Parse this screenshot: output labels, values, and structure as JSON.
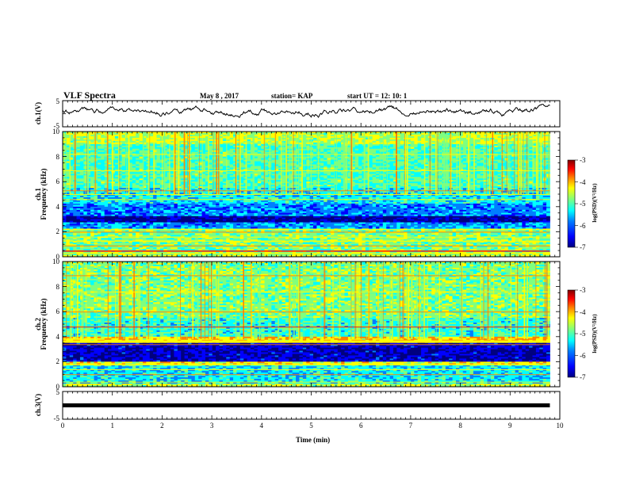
{
  "header": {
    "title": "VLF Spectra",
    "date": "May 8 , 2017",
    "station": "station= KAP",
    "start": "start  UT =   12: 10: 1"
  },
  "colors": {
    "colormap": [
      "#00007f",
      "#0000ff",
      "#007fff",
      "#00ffff",
      "#7fff7f",
      "#ffff00",
      "#ff7f00",
      "#ff0000",
      "#7f0000"
    ]
  },
  "chart_data": [
    {
      "type": "line",
      "title": "",
      "ylabel": "ch.1(V)",
      "ylim": [
        -5,
        5
      ],
      "yticks": [
        "5",
        "-5"
      ],
      "xlim": [
        0,
        10
      ],
      "series": [
        {
          "x": [
            0,
            1,
            2,
            3,
            4,
            5,
            6,
            7,
            8,
            9,
            9.8
          ],
          "values": [
            1,
            2,
            1,
            1,
            0,
            1,
            1,
            0,
            0,
            1,
            0
          ]
        }
      ]
    },
    {
      "type": "heatmap",
      "ylabel_top": "ch.1",
      "ylabel": "Frequency (kHz)",
      "ylim": [
        0,
        10
      ],
      "yticks": [
        "0",
        "2",
        "4",
        "6",
        "8",
        "10"
      ],
      "xlim": [
        0,
        10
      ],
      "colorbar": {
        "label": "log(PSD)(V²/Hz)",
        "range": [
          -7,
          -3
        ],
        "ticks": [
          "-3",
          "-4",
          "-5",
          "-6",
          "-7"
        ]
      }
    },
    {
      "type": "heatmap",
      "ylabel_top": "ch.2",
      "ylabel": "Frequency (kHz)",
      "ylim": [
        0,
        10
      ],
      "yticks": [
        "0",
        "2",
        "4",
        "6",
        "8",
        "10"
      ],
      "xlim": [
        0,
        10
      ],
      "colorbar": {
        "label": "log(PSD)(V²/Hz)",
        "range": [
          -7,
          -3
        ],
        "ticks": [
          "-3",
          "-4",
          "-5",
          "-6",
          "-7"
        ]
      }
    },
    {
      "type": "line",
      "ylabel": "ch.3(V)",
      "ylim": [
        -5,
        5
      ],
      "yticks": [
        "5",
        "-5"
      ],
      "xlim": [
        0,
        10
      ],
      "series": [
        {
          "x": [
            0,
            9.8
          ],
          "values": [
            0,
            0
          ]
        }
      ]
    }
  ],
  "xaxis": {
    "label": "Time  (min)",
    "ticks": [
      "0",
      "1",
      "2",
      "3",
      "4",
      "5",
      "6",
      "7",
      "8",
      "9",
      "10"
    ]
  }
}
